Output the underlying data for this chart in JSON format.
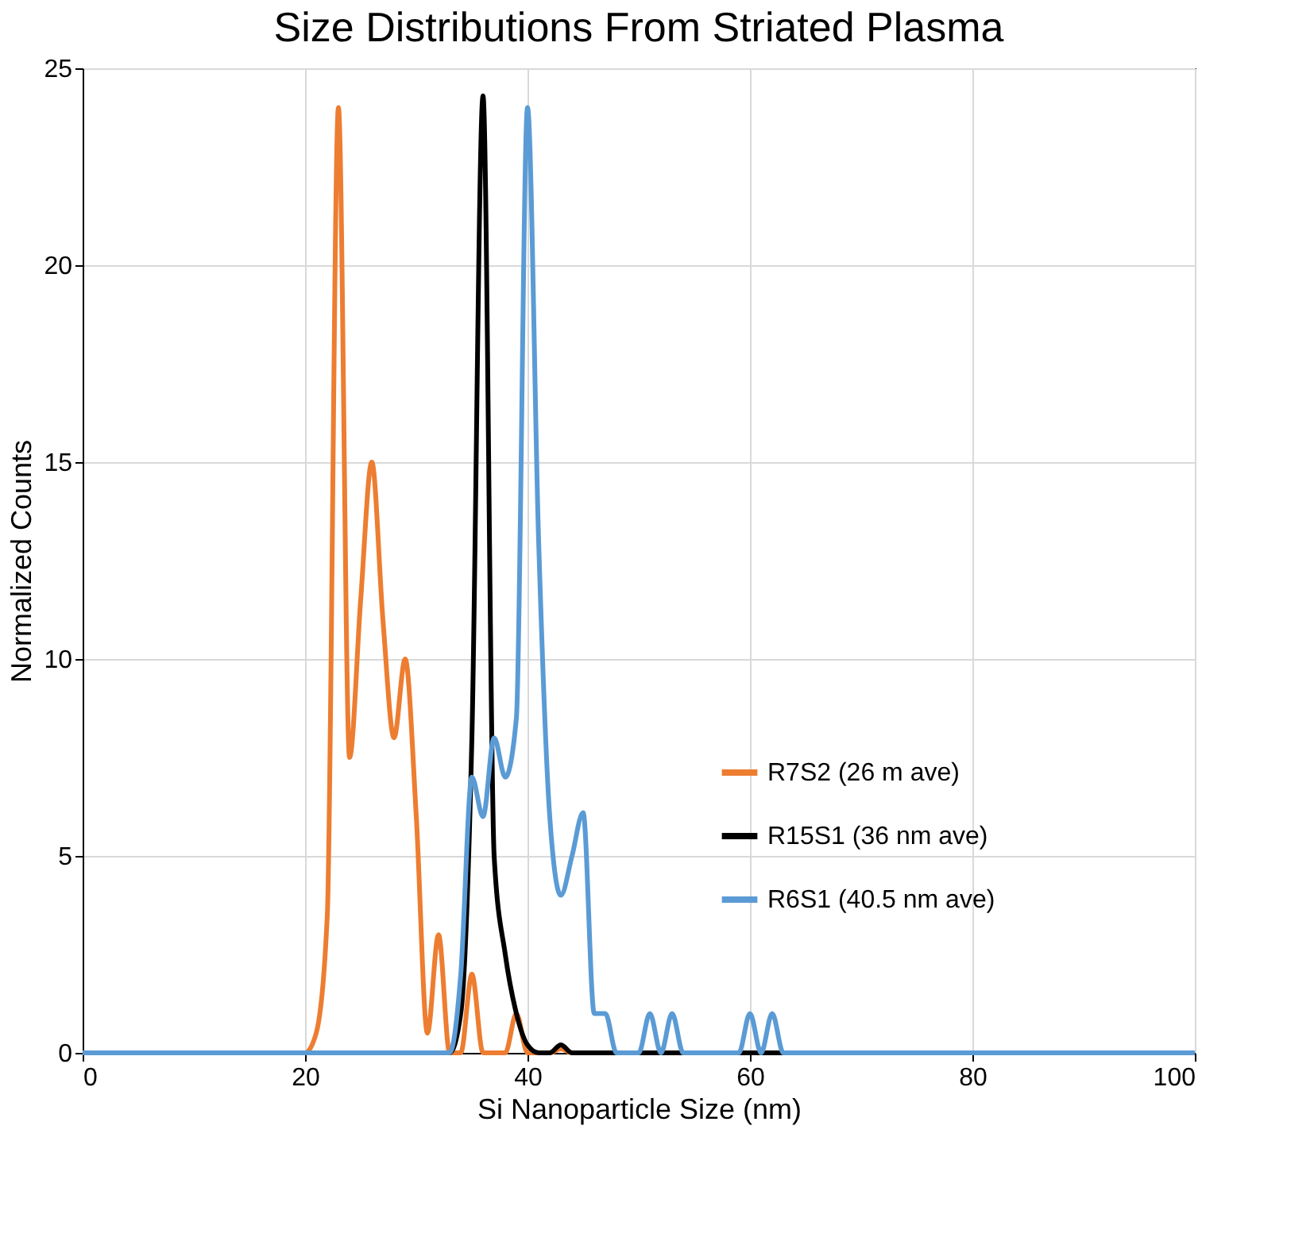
{
  "chart_data": {
    "type": "line",
    "title": "Size Distributions From Striated Plasma",
    "xlabel": "Si Nanoparticle Size (nm)",
    "ylabel": "Normalized Counts",
    "xlim": [
      0,
      100
    ],
    "xticks": [
      0,
      20,
      40,
      60,
      80,
      100
    ],
    "ylim": [
      0,
      25
    ],
    "yticks": [
      0,
      5,
      10,
      15,
      20,
      25
    ],
    "grid": true,
    "legend": "right",
    "marker": "none",
    "line_style": "solid",
    "series": [
      {
        "name": "R7S2 (26 m ave)",
        "color": "#ed7d31",
        "x": [
          0,
          20,
          21,
          22,
          23,
          24,
          25,
          26,
          27,
          28,
          29,
          30,
          31,
          32,
          33,
          34,
          35,
          36,
          37,
          38,
          39,
          40,
          41,
          42,
          43,
          44,
          100
        ],
        "values": [
          0,
          0,
          0.5,
          3.5,
          24,
          7.5,
          11.5,
          15,
          11,
          8,
          10,
          6,
          0.5,
          3,
          0,
          0,
          2,
          0,
          0,
          0,
          1,
          0,
          0,
          0,
          0.1,
          0,
          0
        ]
      },
      {
        "name": "R15S1 (36 nm ave)",
        "color": "#000000",
        "x": [
          0,
          33,
          34,
          35,
          36,
          37,
          38,
          39,
          40,
          41,
          42,
          43,
          44,
          100
        ],
        "values": [
          0,
          0,
          1,
          8,
          24.3,
          5,
          2.5,
          1,
          0.2,
          0,
          0,
          0.2,
          0,
          0
        ]
      },
      {
        "name": "R6S1 (40.5 nm ave)",
        "color": "#5b9bd5",
        "x": [
          0,
          33,
          34,
          35,
          36,
          37,
          38,
          39,
          40,
          41,
          42,
          43,
          44,
          45,
          46,
          47,
          48,
          50,
          51,
          52,
          53,
          54,
          59,
          60,
          61,
          62,
          63,
          100
        ],
        "values": [
          0,
          0,
          2,
          7,
          6,
          8,
          7,
          8.5,
          24,
          13,
          6,
          4,
          5,
          6.1,
          1,
          1,
          0,
          0,
          1,
          0,
          1,
          0,
          0,
          1,
          0,
          1,
          0,
          0
        ]
      }
    ]
  }
}
